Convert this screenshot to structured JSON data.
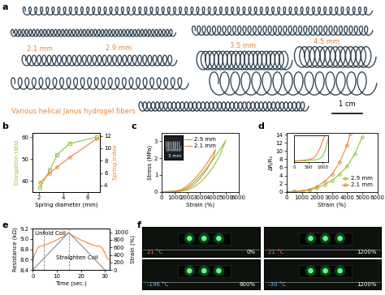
{
  "images": {
    "a": {
      "panel": "a",
      "texts": [
        "2.1 mm",
        "2.9 mm",
        "3.5 mm",
        "4.5 mm"
      ],
      "caption": "Various helical Janus hydrogel fibers",
      "scale_bar": "1 cm",
      "color": "#e8883a"
    },
    "f": {
      "panel": "f",
      "tiles": [
        {
          "temperature": "21 °C",
          "strain": "0%",
          "color": "#ff6a4a"
        },
        {
          "temperature": "21 °C",
          "strain": "1200%",
          "color": "#ff6a4a"
        },
        {
          "temperature": "-196 °C",
          "strain": "600%",
          "color": "#6ab8ff"
        },
        {
          "temperature": "-30 °C",
          "strain": "1200%",
          "color": "#6ab8ff"
        }
      ]
    }
  },
  "chart_data": [
    {
      "panel": "b",
      "type": "line",
      "x_label": "Spring diameter (mm)",
      "y_label": "Elongation ratio",
      "y2_label": "Spring index",
      "x": [
        2.1,
        2.9,
        3.5,
        4.5,
        6.7
      ],
      "xlim": [
        1.5,
        7
      ],
      "xticks": [
        2,
        4,
        6
      ],
      "ylim": [
        35,
        62
      ],
      "yticks": [
        40,
        50,
        60
      ],
      "y2lim": [
        3,
        12.5
      ],
      "y2ticks": [
        4,
        6,
        8,
        10,
        12
      ],
      "series": [
        {
          "color": "#8dc63f",
          "marker": "square",
          "line_style": "solid",
          "values": [
            37,
            45,
            52,
            57,
            60
          ]
        },
        {
          "color": "#e8883a",
          "marker": "circle",
          "line_style": "solid",
          "axis": "y2",
          "values": [
            4.5,
            6,
            7,
            8.5,
            11.5
          ]
        }
      ]
    },
    {
      "panel": "c",
      "type": "line",
      "x_label": "Strain (%)",
      "y_label": "Stress (MPa)",
      "xlim": [
        0,
        6000
      ],
      "xticks": [
        0,
        1000,
        2000,
        3000,
        4000,
        5000,
        6000
      ],
      "ylim": [
        0,
        3.5
      ],
      "yticks": [
        0,
        1,
        2,
        3
      ],
      "legend": "upper center",
      "annotations": [
        "3 mm"
      ],
      "series": [
        {
          "name": "2.9 mm",
          "color": "#8dc63f",
          "line_style": "solid",
          "x": [
            0,
            1000,
            1500,
            2000,
            2500,
            3000,
            3500,
            4000,
            4500,
            5000,
            4500,
            4000,
            3500,
            3000,
            2500,
            2000,
            1500,
            1000,
            500,
            0
          ],
          "values": [
            0,
            0.02,
            0.08,
            0.25,
            0.55,
            0.95,
            1.4,
            1.9,
            2.45,
            3.05,
            2.1,
            1.45,
            0.95,
            0.55,
            0.28,
            0.1,
            0.03,
            0.01,
            0,
            0
          ]
        },
        {
          "name": "2.1 mm",
          "color": "#e8883a",
          "line_style": "solid",
          "x": [
            0,
            1000,
            1500,
            2000,
            2500,
            3000,
            3500,
            4000,
            4200,
            4000,
            3500,
            3000,
            2500,
            2000,
            1500,
            1000,
            500,
            0
          ],
          "values": [
            0,
            0.03,
            0.12,
            0.35,
            0.7,
            1.15,
            1.65,
            2.25,
            2.5,
            2.0,
            1.3,
            0.8,
            0.42,
            0.17,
            0.05,
            0.01,
            0,
            0
          ]
        }
      ]
    },
    {
      "panel": "d",
      "type": "line",
      "x_label": "Strain (%)",
      "y_label": "ΔR/R₀",
      "xlim": [
        0,
        6000
      ],
      "xticks": [
        0,
        1000,
        2000,
        3000,
        4000,
        5000,
        6000
      ],
      "ylim": [
        0,
        14.5
      ],
      "yticks": [
        0,
        2,
        4,
        6,
        8,
        10,
        12,
        14
      ],
      "legend": "lower right",
      "series": [
        {
          "name": "2.9 mm",
          "color": "#8dc63f",
          "marker": "circle",
          "line_style": "solid",
          "x": [
            0,
            500,
            1000,
            1500,
            2000,
            2500,
            3000,
            3500,
            4000,
            4500,
            5000
          ],
          "values": [
            0,
            0.05,
            0.15,
            0.4,
            0.9,
            1.7,
            2.8,
            4.3,
            6.3,
            9.2,
            13.5
          ]
        },
        {
          "name": "2.1 mm",
          "color": "#e8883a",
          "marker": "circle",
          "line_style": "solid",
          "x": [
            0,
            500,
            1000,
            1500,
            2000,
            2500,
            3000,
            3500,
            4000,
            4200
          ],
          "values": [
            0,
            0.05,
            0.2,
            0.6,
            1.3,
            2.5,
            4.3,
            7.2,
            11.5,
            14.2
          ]
        }
      ],
      "inset": {
        "type": "line",
        "xlim": [
          0,
          1200
        ],
        "xticks": [
          0,
          500,
          1000
        ],
        "ylim": [
          0,
          0.5
        ],
        "tick_labels": "x",
        "series": [
          {
            "color": "#8dc63f",
            "line_style": "solid",
            "x": [
              0,
              200,
              400,
              600,
              800,
              900,
              1000,
              1100,
              1200
            ],
            "values": [
              0.02,
              0.03,
              0.03,
              0.04,
              0.05,
              0.07,
              0.12,
              0.25,
              0.45
            ]
          },
          {
            "color": "#e8883a",
            "line_style": "solid",
            "x": [
              0,
              200,
              400,
              600,
              700,
              800,
              900,
              1000,
              1100
            ],
            "values": [
              0.02,
              0.03,
              0.04,
              0.06,
              0.09,
              0.15,
              0.26,
              0.4,
              0.55
            ]
          }
        ]
      }
    },
    {
      "panel": "e",
      "type": "line",
      "x_label": "Time (sec.)",
      "y_label": "Resistance (kΩ)",
      "y2_label": "Strain (%)",
      "xlim": [
        0,
        32
      ],
      "xticks": [
        0,
        10,
        20,
        30
      ],
      "ylim": [
        8.4,
        9.2
      ],
      "yticks": [
        8.4,
        8.6,
        8.8,
        {
          "value": 9,
          "label": "9.0"
        },
        9.2
      ],
      "y2lim": [
        0,
        1100
      ],
      "y2ticks": [
        0,
        200,
        400,
        600,
        800,
        1000
      ],
      "annotations": [
        "Unfold Coil",
        "Straighten Coil"
      ],
      "vlines": [
        4.5,
        15
      ],
      "series": [
        {
          "color": "#e8883a",
          "line_style": "solid",
          "x": [
            0,
            1,
            2,
            3,
            4,
            5,
            6,
            8,
            10,
            12,
            14,
            15,
            16,
            18,
            20,
            22,
            24,
            25,
            26,
            27,
            28,
            29,
            30,
            31,
            32
          ],
          "values": [
            8.6,
            8.72,
            8.82,
            8.86,
            8.87,
            8.88,
            8.9,
            8.94,
            8.98,
            9.03,
            9.08,
            9.11,
            9.08,
            9.03,
            8.98,
            8.94,
            8.9,
            8.88,
            8.87,
            8.86,
            8.86,
            8.82,
            8.72,
            8.62,
            8.6
          ]
        },
        {
          "color": "#8c8c8c",
          "line_style": "solid",
          "axis": "y2",
          "x": [
            0,
            15,
            30
          ],
          "values": [
            0,
            1000,
            0
          ]
        }
      ]
    }
  ]
}
